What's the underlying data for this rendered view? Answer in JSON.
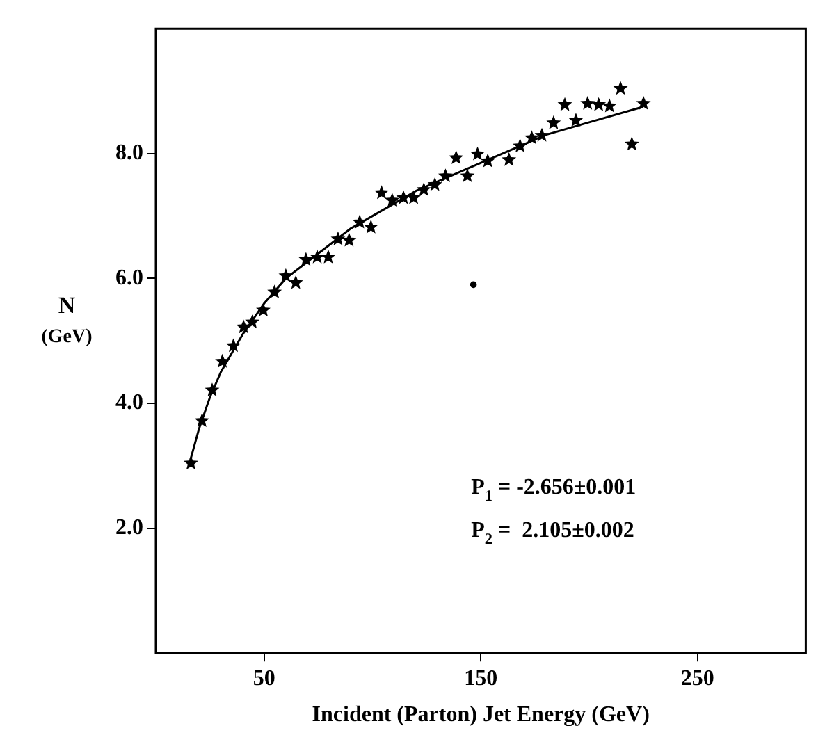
{
  "chart_data": {
    "type": "scatter",
    "xlabel": "Incident (Parton) Jet Energy (GeV)",
    "ylabel": "N (GeV)",
    "xlim": [
      0,
      300
    ],
    "ylim": [
      0,
      10
    ],
    "xticks": [
      50,
      150,
      250
    ],
    "yticks": [
      {
        "value": 2,
        "label": "2.0"
      },
      {
        "value": 4,
        "label": "4.0"
      },
      {
        "value": 6,
        "label": "6.0"
      },
      {
        "value": 8,
        "label": "8.0"
      }
    ],
    "marker": "star",
    "annotations": [
      "P$_{1}$ = -2.656±0.001",
      "P$_{2}$ =  2.105±0.002"
    ],
    "series": [
      {
        "color": "#000000",
        "x": [
          16.2,
          21.3,
          26.0,
          30.7,
          35.8,
          40.5,
          44.5,
          49.6,
          54.8,
          60.0,
          64.6,
          69.3,
          74.5,
          79.6,
          84.1,
          89.2,
          94.1,
          99.3,
          104.2,
          109.1,
          114.3,
          119.0,
          123.7,
          128.8,
          133.7,
          138.6,
          143.8,
          148.5,
          153.2,
          163.0,
          168.1,
          173.5,
          178.2,
          183.6,
          188.8,
          193.9,
          199.3,
          204.4,
          209.4,
          214.5,
          219.7,
          225.1
        ],
        "values": [
          3.04,
          3.72,
          4.21,
          4.67,
          4.92,
          5.22,
          5.3,
          5.49,
          5.78,
          6.04,
          5.93,
          6.3,
          6.34,
          6.34,
          6.63,
          6.61,
          6.9,
          6.82,
          7.37,
          7.25,
          7.29,
          7.29,
          7.42,
          7.5,
          7.64,
          7.93,
          7.64,
          7.99,
          7.88,
          7.9,
          8.12,
          8.25,
          8.29,
          8.49,
          8.78,
          8.53,
          8.8,
          8.78,
          8.76,
          9.04,
          8.15,
          8.8
        ]
      },
      {
        "color": "#000000",
        "marker": "circle",
        "x": [
          146.6
        ],
        "values": [
          5.9
        ]
      },
      {
        "type": "line",
        "color": "#000000",
        "marker": "none",
        "x": [
          16,
          20,
          25,
          30,
          40,
          50,
          60,
          75,
          90,
          105,
          120,
          140,
          160,
          180,
          200,
          225
        ],
        "values": [
          3.1,
          3.6,
          4.1,
          4.5,
          5.1,
          5.6,
          6.0,
          6.4,
          6.8,
          7.1,
          7.4,
          7.7,
          8.0,
          8.3,
          8.5,
          8.75
        ]
      }
    ]
  }
}
